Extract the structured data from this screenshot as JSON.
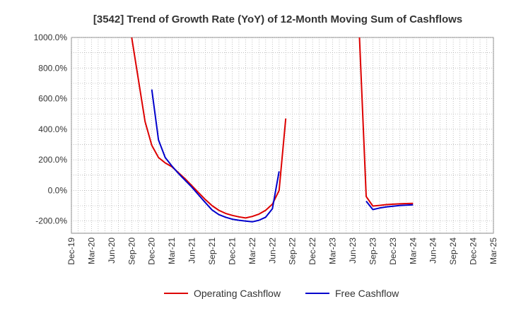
{
  "chart_data": {
    "type": "line",
    "title": "[3542]  Trend of Growth Rate (YoY) of 12-Month Moving Sum of Cashflows",
    "xlabel": "",
    "ylabel": "",
    "y_ticks": [
      "1000.0%",
      "800.0%",
      "600.0%",
      "400.0%",
      "200.0%",
      "0.0%",
      "-200.0%"
    ],
    "y_tick_values": [
      1000,
      800,
      600,
      400,
      200,
      0,
      -200
    ],
    "ylim": [
      -280,
      1000
    ],
    "x_ticks": [
      "Dec-19",
      "Mar-20",
      "Jun-20",
      "Sep-20",
      "Dec-20",
      "Mar-21",
      "Jun-21",
      "Sep-21",
      "Dec-21",
      "Mar-22",
      "Jun-22",
      "Sep-22",
      "Dec-22",
      "Mar-23",
      "Jun-23",
      "Sep-23",
      "Dec-23",
      "Mar-24",
      "Jun-24",
      "Sep-24",
      "Dec-24",
      "Mar-25"
    ],
    "x_range": [
      "Dec-19",
      "Mar-25"
    ],
    "grid": true,
    "legend": "bottom",
    "series": [
      {
        "name": "Operating Cashflow",
        "color": "#dd0000",
        "segments": [
          [
            [
              "Sep-20",
              1000
            ],
            [
              "Nov-20",
              450
            ],
            [
              "Dec-20",
              295
            ],
            [
              "Jan-21",
              215
            ],
            [
              "Feb-21",
              180
            ],
            [
              "Mar-21",
              155
            ],
            [
              "Apr-21",
              115
            ],
            [
              "May-21",
              75
            ],
            [
              "Jun-21",
              30
            ],
            [
              "Jul-21",
              -15
            ],
            [
              "Aug-21",
              -60
            ],
            [
              "Sep-21",
              -100
            ],
            [
              "Oct-21",
              -130
            ],
            [
              "Nov-21",
              -150
            ],
            [
              "Dec-21",
              -163
            ],
            [
              "Jan-22",
              -173
            ],
            [
              "Feb-22",
              -180
            ],
            [
              "Mar-22",
              -170
            ],
            [
              "Apr-22",
              -155
            ],
            [
              "May-22",
              -130
            ],
            [
              "Jun-22",
              -90
            ],
            [
              "Jul-22",
              0
            ],
            [
              "Aug-22",
              470
            ]
          ],
          [
            [
              "Jul-23",
              1000
            ],
            [
              "Aug-23",
              -40
            ],
            [
              "Sep-23",
              -102
            ],
            [
              "Oct-23",
              -98
            ],
            [
              "Nov-23",
              -93
            ],
            [
              "Dec-23",
              -90
            ],
            [
              "Jan-24",
              -88
            ],
            [
              "Feb-24",
              -86
            ],
            [
              "Mar-24",
              -85
            ]
          ]
        ]
      },
      {
        "name": "Free Cashflow",
        "color": "#0000cc",
        "segments": [
          [
            [
              "Dec-20",
              660
            ],
            [
              "Jan-21",
              330
            ],
            [
              "Feb-21",
              215
            ],
            [
              "Mar-21",
              160
            ],
            [
              "Apr-21",
              110
            ],
            [
              "May-21",
              65
            ],
            [
              "Jun-21",
              20
            ],
            [
              "Jul-21",
              -30
            ],
            [
              "Aug-21",
              -80
            ],
            [
              "Sep-21",
              -128
            ],
            [
              "Oct-21",
              -158
            ],
            [
              "Nov-21",
              -175
            ],
            [
              "Dec-21",
              -188
            ],
            [
              "Jan-22",
              -195
            ],
            [
              "Feb-22",
              -200
            ],
            [
              "Mar-22",
              -205
            ],
            [
              "Apr-22",
              -195
            ],
            [
              "May-22",
              -175
            ],
            [
              "Jun-22",
              -120
            ],
            [
              "Jul-22",
              125
            ]
          ],
          [
            [
              "Aug-23",
              -70
            ],
            [
              "Sep-23",
              -125
            ],
            [
              "Oct-23",
              -115
            ],
            [
              "Nov-23",
              -108
            ],
            [
              "Dec-23",
              -103
            ],
            [
              "Jan-24",
              -99
            ],
            [
              "Feb-24",
              -96
            ],
            [
              "Mar-24",
              -94
            ]
          ]
        ]
      }
    ]
  }
}
